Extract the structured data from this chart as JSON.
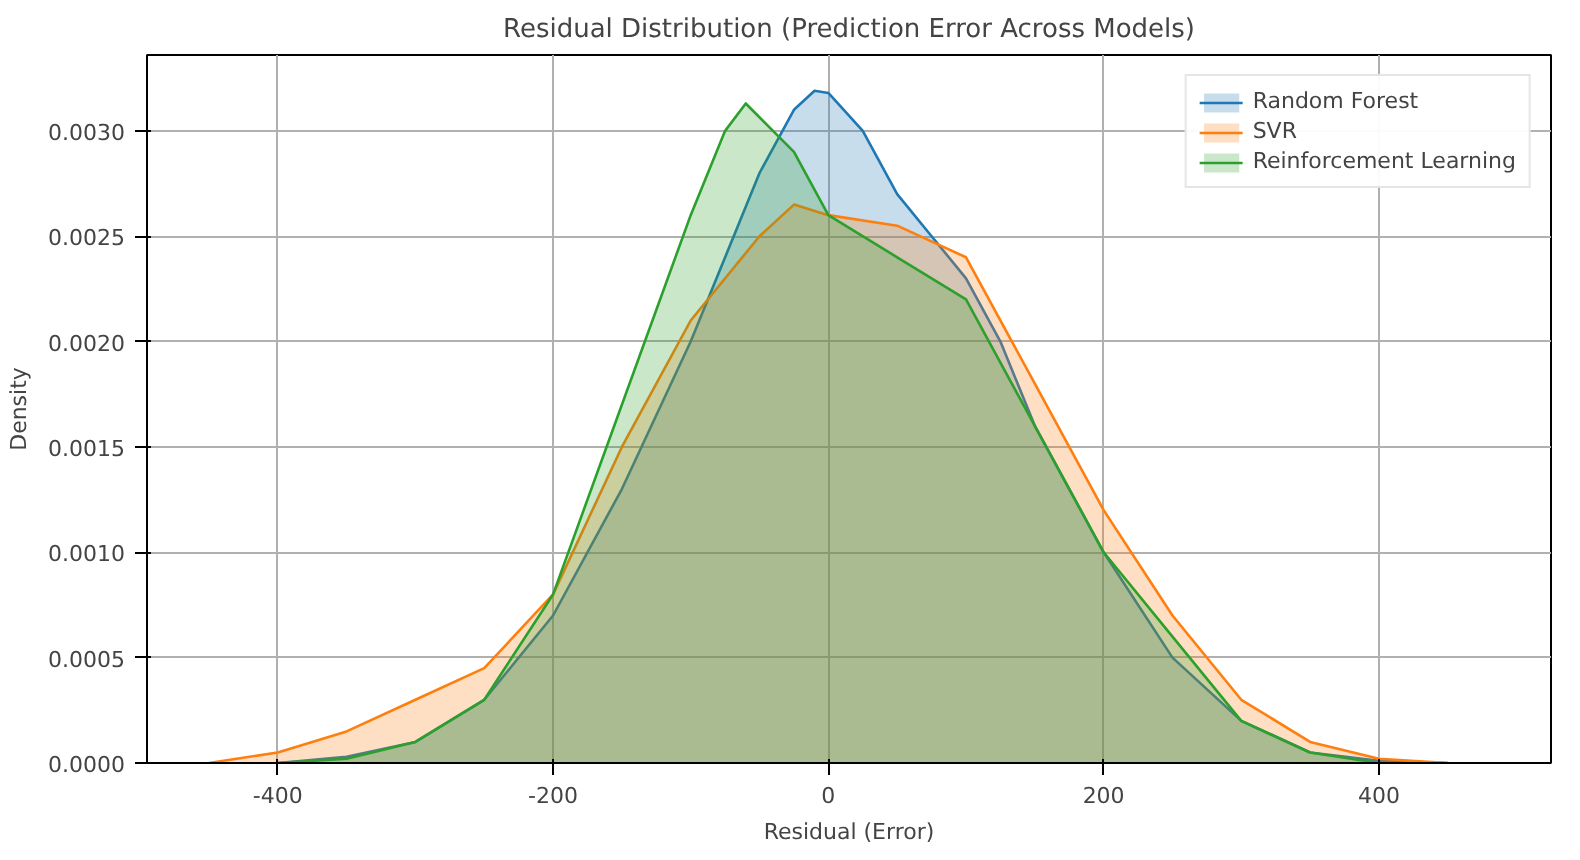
{
  "chart_data": {
    "type": "area",
    "title": "Residual Distribution (Prediction Error Across Models)",
    "xlabel": "Residual (Error)",
    "ylabel": "Density",
    "xlim": [
      -495,
      525
    ],
    "ylim": [
      0,
      0.00336
    ],
    "xticks": [
      -400,
      -200,
      0,
      200,
      400
    ],
    "yticks": [
      {
        "value": 0,
        "label": "0.0000"
      },
      {
        "value": 0.0005,
        "label": "0.0005"
      },
      {
        "value": 0.001,
        "label": "0.0010"
      },
      {
        "value": 0.0015,
        "label": "0.0015"
      },
      {
        "value": 0.002,
        "label": "0.0020"
      },
      {
        "value": 0.0025,
        "label": "0.0025"
      },
      {
        "value": 0.003,
        "label": "0.0030"
      }
    ],
    "grid": true,
    "legend": "top right",
    "series": [
      {
        "name": "Random Forest",
        "color": "#1f77b4",
        "x": [
          -400,
          -350,
          -300,
          -250,
          -200,
          -150,
          -100,
          -50,
          -25,
          -10,
          0,
          25,
          50,
          75,
          100,
          125,
          150,
          200,
          250,
          300,
          350,
          400,
          450
        ],
        "values": [
          0,
          3e-05,
          0.0001,
          0.0003,
          0.0007,
          0.0013,
          0.002,
          0.0028,
          0.0031,
          0.00319,
          0.00318,
          0.003,
          0.0027,
          0.0025,
          0.0023,
          0.002,
          0.0016,
          0.001,
          0.0005,
          0.0002,
          5e-05,
          1e-05,
          0
        ]
      },
      {
        "name": "SVR",
        "color": "#ff7f0e",
        "x": [
          -450,
          -400,
          -350,
          -300,
          -250,
          -200,
          -150,
          -100,
          -50,
          -25,
          0,
          50,
          100,
          150,
          200,
          250,
          300,
          350,
          400,
          450
        ],
        "values": [
          0,
          5e-05,
          0.00015,
          0.0003,
          0.00045,
          0.0008,
          0.0015,
          0.0021,
          0.0025,
          0.00265,
          0.0026,
          0.00255,
          0.0024,
          0.0018,
          0.0012,
          0.0007,
          0.0003,
          0.0001,
          2e-05,
          0
        ]
      },
      {
        "name": "Reinforcement Learning",
        "color": "#2ca02c",
        "x": [
          -400,
          -350,
          -300,
          -250,
          -200,
          -150,
          -100,
          -75,
          -60,
          -25,
          0,
          50,
          100,
          150,
          200,
          250,
          300,
          350,
          400
        ],
        "values": [
          0,
          2e-05,
          0.0001,
          0.0003,
          0.0008,
          0.0017,
          0.0026,
          0.003,
          0.00313,
          0.0029,
          0.0026,
          0.0024,
          0.0022,
          0.0016,
          0.001,
          0.0006,
          0.0002,
          5e-05,
          0
        ]
      }
    ]
  }
}
